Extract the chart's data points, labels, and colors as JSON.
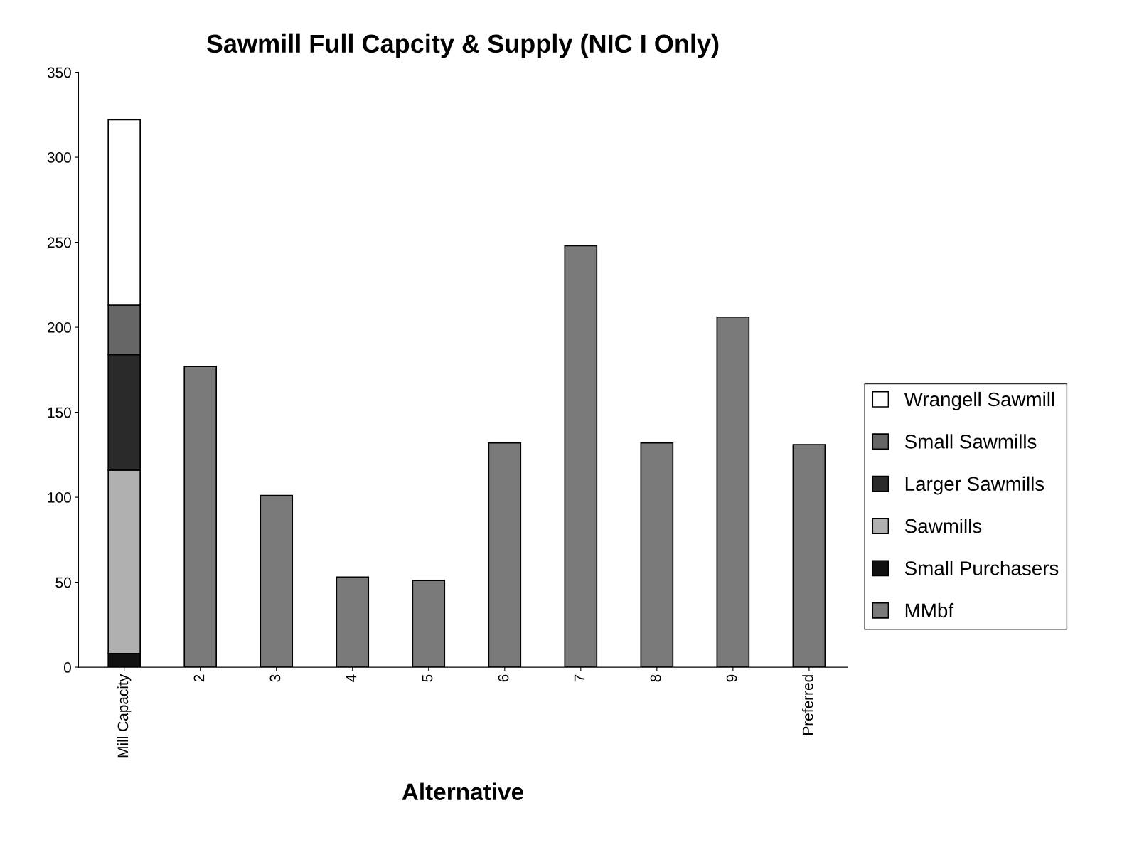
{
  "chart_data": {
    "type": "bar",
    "title": "Sawmill Full Capcity & Supply (NIC I Only)",
    "xlabel": "Alternative",
    "categories": [
      "Mill Capacity",
      "2",
      "3",
      "4",
      "5",
      "6",
      "7",
      "8",
      "9",
      "Preferred"
    ],
    "stacked": true,
    "legend": "right",
    "grid": false,
    "ylim": [
      0,
      350
    ],
    "yticks": [
      0,
      50,
      100,
      150,
      200,
      250,
      300,
      350
    ],
    "series": [
      {
        "name": "MMbf",
        "color": "#7a7a7a",
        "values": [
          null,
          177,
          101,
          53,
          51,
          132,
          248,
          132,
          206,
          131
        ]
      },
      {
        "name": "Small Purchasers",
        "color": "#111111",
        "values": [
          8,
          null,
          null,
          null,
          null,
          null,
          null,
          null,
          null,
          null
        ]
      },
      {
        "name": "Sawmills",
        "color": "#b0b0b0",
        "values": [
          108,
          null,
          null,
          null,
          null,
          null,
          null,
          null,
          null,
          null
        ]
      },
      {
        "name": "Larger Sawmills",
        "color": "#2a2a2a",
        "values": [
          68,
          null,
          null,
          null,
          null,
          null,
          null,
          null,
          null,
          null
        ]
      },
      {
        "name": "Small Sawmills",
        "color": "#666666",
        "values": [
          29,
          null,
          null,
          null,
          null,
          null,
          null,
          null,
          null,
          null
        ]
      },
      {
        "name": "Wrangell Sawmill",
        "color": "#ffffff",
        "values": [
          109,
          null,
          null,
          null,
          null,
          null,
          null,
          null,
          null,
          null
        ]
      }
    ]
  }
}
